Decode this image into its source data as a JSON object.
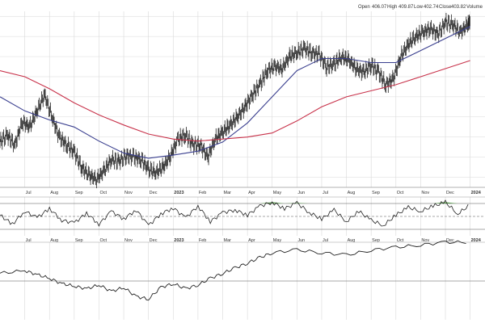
{
  "header": {
    "open_label": "Open",
    "open_value": "406.07",
    "high_label": "High",
    "high_value": "409.87",
    "low_label": "Low",
    "low_value": "402.74",
    "close_label": "Close",
    "close_value": "403.82",
    "volume_label": "Volume"
  },
  "colors": {
    "price": "#222222",
    "ma_short": "#3a3f8f",
    "ma_long": "#c8324a",
    "grid": "#d9d9d9",
    "axis_text": "#333333",
    "overbought_fill": "#5a9a4e",
    "indicator_line": "#222222",
    "reference_line": "#555555"
  },
  "chart_data": [
    {
      "type": "line",
      "panel": "price",
      "x_tick_labels": [
        "Jul",
        "Aug",
        "Sep",
        "Oct",
        "Nov",
        "Dec",
        "2023",
        "Feb",
        "Mar",
        "Apr",
        "May",
        "Jun",
        "Jul",
        "Aug",
        "Sep",
        "Oct",
        "Nov",
        "Dec",
        "2024"
      ],
      "x_tick_months": [
        1,
        2,
        3,
        4,
        5,
        6,
        7,
        8,
        9,
        10,
        11,
        12,
        13,
        14,
        15,
        16,
        17,
        18,
        19
      ],
      "series_points_month_index": [
        [
          0,
          265
        ],
        [
          0.3,
          272
        ],
        [
          0.6,
          262
        ],
        [
          0.9,
          285
        ],
        [
          1.2,
          280
        ],
        [
          1.5,
          296
        ],
        [
          1.8,
          312
        ],
        [
          2.1,
          290
        ],
        [
          2.4,
          270
        ],
        [
          2.7,
          262
        ],
        [
          3.0,
          255
        ],
        [
          3.3,
          240
        ],
        [
          3.6,
          232
        ],
        [
          3.9,
          228
        ],
        [
          4.2,
          236
        ],
        [
          4.5,
          248
        ],
        [
          4.8,
          245
        ],
        [
          5.1,
          252
        ],
        [
          5.4,
          250
        ],
        [
          5.7,
          248
        ],
        [
          6.0,
          238
        ],
        [
          6.3,
          235
        ],
        [
          6.6,
          240
        ],
        [
          6.9,
          252
        ],
        [
          7.2,
          268
        ],
        [
          7.5,
          272
        ],
        [
          7.8,
          262
        ],
        [
          8.1,
          262
        ],
        [
          8.4,
          250
        ],
        [
          8.7,
          268
        ],
        [
          9.0,
          275
        ],
        [
          9.3,
          282
        ],
        [
          9.6,
          290
        ],
        [
          9.9,
          300
        ],
        [
          10.2,
          312
        ],
        [
          10.5,
          322
        ],
        [
          10.8,
          336
        ],
        [
          11.1,
          340
        ],
        [
          11.4,
          338
        ],
        [
          11.7,
          350
        ],
        [
          12.0,
          354
        ],
        [
          12.3,
          358
        ],
        [
          12.6,
          354
        ],
        [
          12.9,
          352
        ],
        [
          13.2,
          340
        ],
        [
          13.5,
          342
        ],
        [
          13.8,
          350
        ],
        [
          14.1,
          346
        ],
        [
          14.4,
          338
        ],
        [
          14.7,
          334
        ],
        [
          15.0,
          342
        ],
        [
          15.3,
          334
        ],
        [
          15.6,
          322
        ],
        [
          15.9,
          328
        ],
        [
          16.2,
          350
        ],
        [
          16.5,
          362
        ],
        [
          16.8,
          370
        ],
        [
          17.1,
          374
        ],
        [
          17.4,
          378
        ],
        [
          17.7,
          372
        ],
        [
          18.0,
          384
        ],
        [
          18.3,
          382
        ],
        [
          18.6,
          374
        ],
        [
          18.9,
          382
        ],
        [
          19.0,
          386
        ]
      ],
      "ma_short_month_index": [
        [
          0,
          310
        ],
        [
          1.0,
          296
        ],
        [
          2.0,
          287
        ],
        [
          3.0,
          280
        ],
        [
          4.0,
          266
        ],
        [
          5.0,
          254
        ],
        [
          6.0,
          249
        ],
        [
          7.0,
          252
        ],
        [
          8.0,
          256
        ],
        [
          9.0,
          265
        ],
        [
          10.0,
          284
        ],
        [
          11.0,
          310
        ],
        [
          12.0,
          336
        ],
        [
          13.0,
          348
        ],
        [
          14.0,
          348
        ],
        [
          15.0,
          344
        ],
        [
          16.0,
          344
        ],
        [
          17.0,
          356
        ],
        [
          18.0,
          368
        ],
        [
          19.0,
          380
        ]
      ],
      "ma_long_month_index": [
        [
          0,
          336
        ],
        [
          1.0,
          330
        ],
        [
          2.0,
          318
        ],
        [
          3.0,
          304
        ],
        [
          4.0,
          292
        ],
        [
          5.0,
          282
        ],
        [
          6.0,
          273
        ],
        [
          7.0,
          268
        ],
        [
          8.0,
          266
        ],
        [
          9.0,
          268
        ],
        [
          10.0,
          270
        ],
        [
          11.0,
          274
        ],
        [
          12.0,
          286
        ],
        [
          13.0,
          300
        ],
        [
          14.0,
          310
        ],
        [
          15.0,
          316
        ],
        [
          16.0,
          322
        ],
        [
          17.0,
          330
        ],
        [
          18.0,
          338
        ],
        [
          19.0,
          346
        ]
      ]
    },
    {
      "type": "line",
      "panel": "oscillator",
      "upper_level": 70,
      "middle_level": 50,
      "lower_level": 30,
      "ylim": [
        20,
        80
      ],
      "values_month_index": [
        [
          0,
          52
        ],
        [
          0.5,
          38
        ],
        [
          1.0,
          58
        ],
        [
          1.5,
          48
        ],
        [
          2.0,
          62
        ],
        [
          2.5,
          44
        ],
        [
          3.0,
          40
        ],
        [
          3.5,
          55
        ],
        [
          4.0,
          38
        ],
        [
          4.5,
          58
        ],
        [
          5.0,
          46
        ],
        [
          5.5,
          60
        ],
        [
          6.0,
          36
        ],
        [
          6.5,
          54
        ],
        [
          7.0,
          63
        ],
        [
          7.5,
          48
        ],
        [
          8.0,
          66
        ],
        [
          8.5,
          42
        ],
        [
          9.0,
          56
        ],
        [
          9.5,
          60
        ],
        [
          10.0,
          52
        ],
        [
          10.5,
          66
        ],
        [
          11.0,
          72
        ],
        [
          11.5,
          62
        ],
        [
          12.0,
          71
        ],
        [
          12.5,
          56
        ],
        [
          13.0,
          46
        ],
        [
          13.5,
          60
        ],
        [
          14.0,
          42
        ],
        [
          14.5,
          58
        ],
        [
          15.0,
          44
        ],
        [
          15.5,
          36
        ],
        [
          16.0,
          52
        ],
        [
          16.5,
          64
        ],
        [
          17.0,
          58
        ],
        [
          17.5,
          66
        ],
        [
          18.0,
          72
        ],
        [
          18.5,
          54
        ],
        [
          19.0,
          68
        ]
      ]
    },
    {
      "type": "line",
      "panel": "relative",
      "reference_level": 100,
      "ylim": [
        70,
        130
      ],
      "values_month_index": [
        [
          0,
          106
        ],
        [
          1.0,
          108
        ],
        [
          1.5,
          105
        ],
        [
          2.0,
          102
        ],
        [
          2.5,
          98
        ],
        [
          3.0,
          96
        ],
        [
          3.5,
          94
        ],
        [
          4.0,
          97
        ],
        [
          4.5,
          92
        ],
        [
          5.0,
          95
        ],
        [
          5.5,
          88
        ],
        [
          6.0,
          86
        ],
        [
          6.5,
          95
        ],
        [
          7.0,
          98
        ],
        [
          7.5,
          94
        ],
        [
          8.0,
          97
        ],
        [
          8.5,
          102
        ],
        [
          9.0,
          106
        ],
        [
          9.5,
          110
        ],
        [
          10.0,
          114
        ],
        [
          10.5,
          118
        ],
        [
          11.0,
          122
        ],
        [
          12.0,
          124
        ],
        [
          13.0,
          122
        ],
        [
          14.0,
          120
        ],
        [
          15.0,
          124
        ],
        [
          16.0,
          126
        ],
        [
          17.0,
          128
        ],
        [
          18.0,
          130
        ],
        [
          19.0,
          130
        ]
      ]
    }
  ]
}
